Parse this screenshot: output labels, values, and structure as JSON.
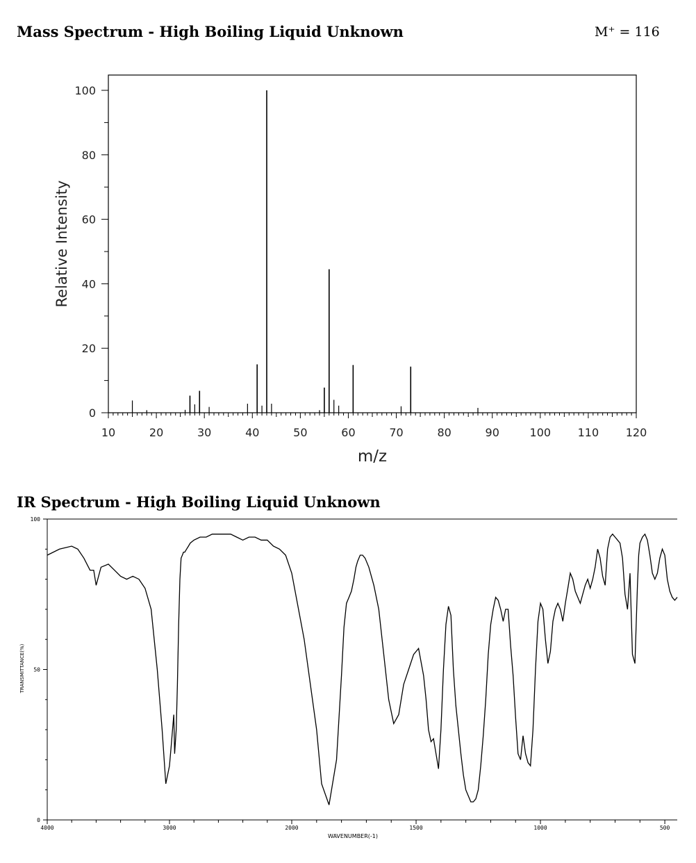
{
  "ms": {
    "title": "Mass Spectrum - High Boiling Liquid Unknown",
    "molecular_ion": "M⁺ = 116"
  },
  "ir": {
    "title": "IR Spectrum - High Boiling Liquid Unknown"
  },
  "chart_data": [
    {
      "type": "bar",
      "title": "Mass Spectrum - High Boiling Liquid Unknown",
      "annotation": "M⁺ = 116",
      "xlabel": "m/z",
      "ylabel": "Relative Intensity",
      "xlim": [
        10,
        120
      ],
      "ylim": [
        0,
        100
      ],
      "x_ticks": [
        10,
        20,
        30,
        40,
        50,
        60,
        70,
        80,
        90,
        100,
        110,
        120
      ],
      "y_ticks": [
        0,
        20,
        40,
        60,
        80,
        100
      ],
      "grid": false,
      "peaks": [
        {
          "mz": 15,
          "intensity": 3.8
        },
        {
          "mz": 18,
          "intensity": 0.8
        },
        {
          "mz": 26,
          "intensity": 0.9
        },
        {
          "mz": 27,
          "intensity": 5.3
        },
        {
          "mz": 28,
          "intensity": 2.6
        },
        {
          "mz": 29,
          "intensity": 6.8
        },
        {
          "mz": 31,
          "intensity": 1.8
        },
        {
          "mz": 39,
          "intensity": 2.8
        },
        {
          "mz": 41,
          "intensity": 15.0
        },
        {
          "mz": 42,
          "intensity": 2.2
        },
        {
          "mz": 43,
          "intensity": 100.0
        },
        {
          "mz": 44,
          "intensity": 2.8
        },
        {
          "mz": 54,
          "intensity": 0.8
        },
        {
          "mz": 55,
          "intensity": 7.8
        },
        {
          "mz": 56,
          "intensity": 44.5
        },
        {
          "mz": 57,
          "intensity": 4.0
        },
        {
          "mz": 58,
          "intensity": 2.2
        },
        {
          "mz": 61,
          "intensity": 14.8
        },
        {
          "mz": 71,
          "intensity": 2.0
        },
        {
          "mz": 73,
          "intensity": 14.3
        },
        {
          "mz": 87,
          "intensity": 1.5
        }
      ]
    },
    {
      "type": "line",
      "title": "IR Spectrum - High Boiling Liquid Unknown",
      "xlabel": "WAVENUMBER(-1)",
      "ylabel": "TRANSMITTANCE(%)",
      "xlim": [
        4000,
        450
      ],
      "ylim": [
        0,
        100
      ],
      "x_ticks": [
        4000,
        3000,
        2000,
        1500,
        1000,
        500
      ],
      "y_ticks": [
        0,
        50,
        100
      ],
      "grid": false,
      "series": [
        {
          "x": [
            4000,
            3900,
            3800,
            3750,
            3700,
            3650,
            3620,
            3600,
            3560,
            3500,
            3450,
            3400,
            3350,
            3300,
            3250,
            3200,
            3150,
            3100,
            3060,
            3030,
            3000,
            2985,
            2975,
            2965,
            2958,
            2945,
            2935,
            2925,
            2915,
            2905,
            2895,
            2885,
            2875,
            2860,
            2845,
            2830,
            2800,
            2750,
            2700,
            2650,
            2600,
            2550,
            2500,
            2450,
            2400,
            2350,
            2300,
            2250,
            2200,
            2150,
            2100,
            2050,
            2000,
            1950,
            1900,
            1880,
            1850,
            1820,
            1800,
            1790,
            1780,
            1770,
            1760,
            1750,
            1742,
            1735,
            1725,
            1715,
            1705,
            1690,
            1670,
            1650,
            1630,
            1610,
            1590,
            1570,
            1550,
            1530,
            1510,
            1490,
            1470,
            1460,
            1450,
            1440,
            1430,
            1420,
            1410,
            1400,
            1390,
            1380,
            1370,
            1360,
            1350,
            1340,
            1330,
            1320,
            1310,
            1300,
            1290,
            1280,
            1270,
            1260,
            1250,
            1240,
            1230,
            1220,
            1210,
            1200,
            1190,
            1180,
            1170,
            1160,
            1150,
            1140,
            1130,
            1120,
            1110,
            1100,
            1090,
            1080,
            1070,
            1060,
            1050,
            1040,
            1030,
            1020,
            1010,
            1000,
            990,
            980,
            970,
            960,
            950,
            940,
            930,
            920,
            910,
            900,
            890,
            880,
            870,
            860,
            850,
            840,
            830,
            820,
            810,
            800,
            790,
            780,
            770,
            760,
            750,
            740,
            730,
            720,
            710,
            700,
            690,
            680,
            670,
            660,
            650,
            640,
            630,
            620,
            615,
            610,
            605,
            600,
            590,
            580,
            570,
            560,
            550,
            540,
            530,
            520,
            510,
            500,
            490,
            480,
            470,
            460,
            450
          ],
          "y": [
            88,
            90,
            91,
            90,
            87,
            83,
            83,
            78,
            84,
            85,
            83,
            81,
            80,
            81,
            80,
            77,
            70,
            50,
            30,
            12,
            18,
            25,
            30,
            35,
            22,
            30,
            45,
            65,
            80,
            87,
            88,
            89,
            89,
            90,
            91,
            92,
            93,
            94,
            94,
            95,
            95,
            95,
            95,
            94,
            93,
            94,
            94,
            93,
            93,
            91,
            90,
            88,
            82,
            60,
            30,
            12,
            5,
            20,
            48,
            64,
            72,
            74,
            76,
            80,
            84,
            86,
            88,
            88,
            87,
            84,
            78,
            70,
            55,
            40,
            32,
            35,
            45,
            50,
            55,
            57,
            48,
            40,
            30,
            26,
            27,
            22,
            17,
            30,
            50,
            65,
            71,
            68,
            50,
            38,
            30,
            22,
            15,
            10,
            8,
            6,
            6,
            7,
            10,
            18,
            28,
            40,
            55,
            65,
            70,
            74,
            73,
            70,
            66,
            70,
            70,
            58,
            48,
            34,
            22,
            20,
            28,
            22,
            19,
            18,
            30,
            50,
            66,
            72,
            70,
            60,
            52,
            56,
            66,
            70,
            72,
            70,
            66,
            72,
            77,
            82,
            80,
            76,
            74,
            72,
            75,
            78,
            80,
            77,
            80,
            84,
            90,
            87,
            81,
            78,
            90,
            94,
            95,
            94,
            93,
            92,
            87,
            75,
            70,
            82,
            55,
            52,
            65,
            78,
            88,
            92,
            94,
            95,
            93,
            88,
            82,
            80,
            82,
            87,
            90,
            88,
            80,
            76,
            74,
            73,
            74
          ]
        }
      ]
    }
  ]
}
